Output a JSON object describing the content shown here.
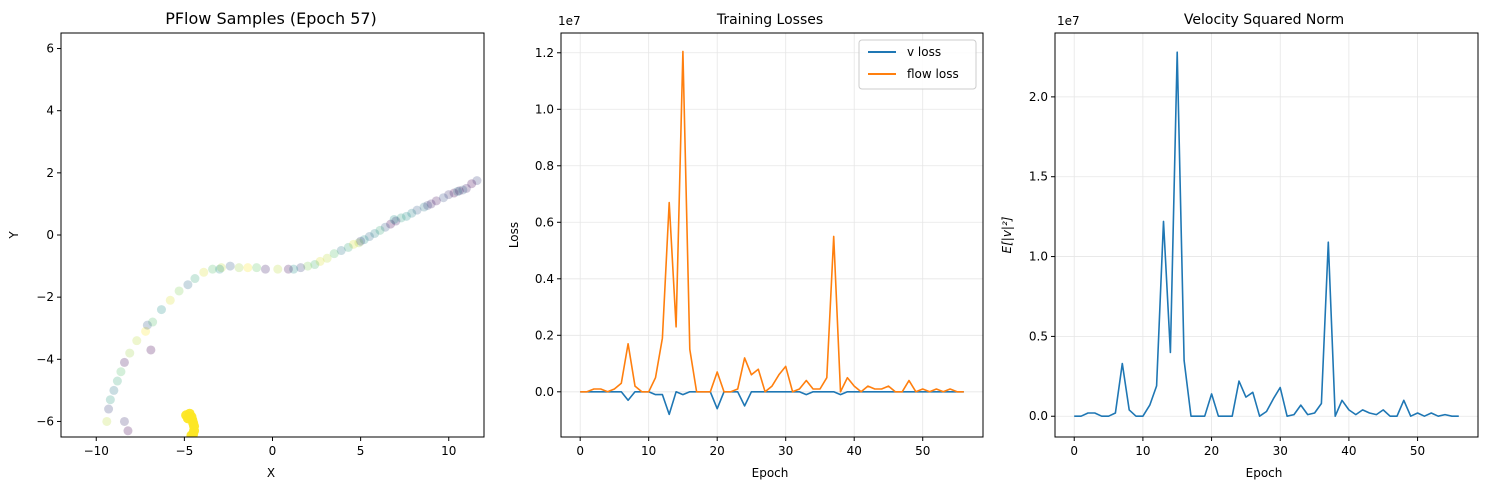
{
  "chart_data": [
    {
      "type": "scatter",
      "title": "PFlow Samples (Epoch 57)",
      "xlabel": "X",
      "ylabel": "Y",
      "xlim": [
        -12,
        12
      ],
      "ylim": [
        -6.5,
        6.5
      ],
      "xticks": [
        -10,
        -5,
        0,
        5,
        10
      ],
      "yticks": [
        -6,
        -4,
        -2,
        0,
        2,
        4,
        6
      ],
      "grid": false,
      "colormap": "viridis",
      "alpha": 0.25,
      "points": [
        [
          11.6,
          1.75,
          0.2
        ],
        [
          11.3,
          1.65,
          0.0
        ],
        [
          11.0,
          1.5,
          0.1
        ],
        [
          10.8,
          1.45,
          0.3
        ],
        [
          10.6,
          1.42,
          0.05
        ],
        [
          10.3,
          1.35,
          0.0
        ],
        [
          10.0,
          1.3,
          0.15
        ],
        [
          9.7,
          1.2,
          0.25
        ],
        [
          9.3,
          1.1,
          0.05
        ],
        [
          9.0,
          1.0,
          0.1
        ],
        [
          8.6,
          0.9,
          0.4
        ],
        [
          8.2,
          0.8,
          0.3
        ],
        [
          7.9,
          0.7,
          0.45
        ],
        [
          7.6,
          0.6,
          0.5
        ],
        [
          7.3,
          0.55,
          0.55
        ],
        [
          7.0,
          0.45,
          0.1
        ],
        [
          6.7,
          0.35,
          0.0
        ],
        [
          6.4,
          0.25,
          0.3
        ],
        [
          6.1,
          0.15,
          0.6
        ],
        [
          5.8,
          0.05,
          0.45
        ],
        [
          5.5,
          -0.05,
          0.35
        ],
        [
          5.2,
          -0.15,
          0.5
        ],
        [
          4.9,
          -0.25,
          0.85
        ],
        [
          4.6,
          -0.3,
          0.95
        ],
        [
          4.3,
          -0.4,
          0.6
        ],
        [
          3.9,
          -0.5,
          0.4
        ],
        [
          3.5,
          -0.6,
          0.7
        ],
        [
          3.1,
          -0.75,
          0.9
        ],
        [
          2.7,
          -0.85,
          0.95
        ],
        [
          2.4,
          -0.95,
          0.65
        ],
        [
          2.0,
          -1.0,
          0.8
        ],
        [
          1.6,
          -1.05,
          0.2
        ],
        [
          1.2,
          -1.1,
          0.5
        ],
        [
          0.9,
          -1.1,
          0.05
        ],
        [
          0.3,
          -1.1,
          0.9
        ],
        [
          -0.4,
          -1.1,
          0.1
        ],
        [
          -0.9,
          -1.05,
          0.75
        ],
        [
          -1.4,
          -1.05,
          1.0
        ],
        [
          -1.9,
          -1.05,
          0.85
        ],
        [
          -2.4,
          -1.0,
          0.3
        ],
        [
          -2.9,
          -1.05,
          0.9
        ],
        [
          -3.4,
          -1.1,
          0.7
        ],
        [
          -3.9,
          -1.2,
          0.95
        ],
        [
          -4.4,
          -1.4,
          0.6
        ],
        [
          -4.8,
          -1.6,
          0.35
        ],
        [
          -5.3,
          -1.8,
          0.8
        ],
        [
          -5.8,
          -2.1,
          0.95
        ],
        [
          -6.3,
          -2.4,
          0.5
        ],
        [
          -6.8,
          -2.8,
          0.7
        ],
        [
          -7.2,
          -3.1,
          1.0
        ],
        [
          -7.7,
          -3.4,
          0.9
        ],
        [
          -8.1,
          -3.8,
          0.85
        ],
        [
          -8.4,
          -4.1,
          0.05
        ],
        [
          -8.6,
          -4.4,
          0.7
        ],
        [
          -8.8,
          -4.7,
          0.6
        ],
        [
          -9.0,
          -5.0,
          0.4
        ],
        [
          -9.2,
          -5.3,
          0.55
        ],
        [
          -9.3,
          -5.6,
          0.2
        ],
        [
          -9.4,
          -6.0,
          0.9
        ],
        [
          -8.4,
          -6.0,
          0.15
        ],
        [
          -8.2,
          -6.3,
          0.0
        ],
        [
          -6.9,
          -3.7,
          0.0
        ],
        [
          -7.1,
          -2.9,
          0.3
        ],
        [
          -3.0,
          -1.1,
          0.5
        ],
        [
          5.0,
          -0.2,
          0.2
        ],
        [
          6.9,
          0.5,
          0.5
        ],
        [
          8.8,
          0.95,
          0.2
        ],
        [
          10.5,
          1.4,
          0.4
        ]
      ],
      "cluster_points": [
        [
          -4.9,
          -5.8
        ],
        [
          -4.7,
          -5.75
        ],
        [
          -4.6,
          -5.85
        ],
        [
          -4.55,
          -5.95
        ],
        [
          -4.5,
          -6.05
        ],
        [
          -4.45,
          -6.15
        ],
        [
          -4.45,
          -6.3
        ],
        [
          -4.5,
          -6.4
        ],
        [
          -4.6,
          -6.45
        ],
        [
          -4.8,
          -5.9
        ]
      ]
    },
    {
      "type": "line",
      "title": "Training Losses",
      "xlabel": "Epoch",
      "ylabel": "Loss",
      "scale_label": "1e7",
      "xlim": [
        -2.8,
        58.8
      ],
      "ylim": [
        -0.16,
        1.27
      ],
      "xticks": [
        0,
        10,
        20,
        30,
        40,
        50
      ],
      "yticks": [
        0.0,
        0.2,
        0.4,
        0.6,
        0.8,
        1.0,
        1.2
      ],
      "grid": true,
      "legend": "top-right",
      "series": [
        {
          "name": "v loss",
          "color": "#1f77b4",
          "values": [
            0,
            0,
            0,
            0,
            0,
            0,
            0,
            -0.03,
            0,
            0,
            0,
            -0.01,
            -0.01,
            -0.08,
            0,
            -0.01,
            0,
            0,
            0,
            0,
            -0.06,
            0,
            0,
            0,
            -0.05,
            0,
            0,
            0,
            0,
            0,
            0,
            0,
            0,
            -0.01,
            0,
            0,
            0,
            0,
            -0.01,
            0,
            0,
            0,
            0,
            0,
            0,
            0,
            0,
            0,
            0,
            0,
            0,
            0,
            0,
            0,
            0,
            0,
            0
          ]
        },
        {
          "name": "flow loss",
          "color": "#ff7f0e",
          "values": [
            0,
            0,
            0.01,
            0.01,
            0,
            0.01,
            0.03,
            0.17,
            0.02,
            0,
            0,
            0.05,
            0.19,
            0.67,
            0.23,
            1.205,
            0.15,
            0,
            0,
            0,
            0.07,
            0,
            0,
            0.01,
            0.12,
            0.06,
            0.08,
            0,
            0.02,
            0.06,
            0.09,
            0,
            0.01,
            0.04,
            0.01,
            0.01,
            0.05,
            0.55,
            0,
            0.05,
            0.02,
            0,
            0.02,
            0.01,
            0.01,
            0.02,
            0,
            0,
            0.04,
            0,
            0.01,
            0,
            0.01,
            0,
            0.01,
            0,
            0
          ]
        }
      ]
    },
    {
      "type": "line",
      "title": "Velocity Squared Norm",
      "xlabel": "Epoch",
      "ylabel": "E[|v|²]",
      "scale_label": "1e7",
      "xlim": [
        -2.8,
        58.8
      ],
      "ylim": [
        -0.13,
        2.4
      ],
      "xticks": [
        0,
        10,
        20,
        30,
        40,
        50
      ],
      "yticks": [
        0.0,
        0.5,
        1.0,
        1.5,
        2.0
      ],
      "grid": true,
      "series": [
        {
          "name": "",
          "color": "#1f77b4",
          "values": [
            0,
            0,
            0.02,
            0.02,
            0,
            0,
            0.02,
            0.33,
            0.04,
            0,
            0,
            0.07,
            0.19,
            1.22,
            0.4,
            2.28,
            0.35,
            0,
            0,
            0,
            0.14,
            0,
            0,
            0,
            0.22,
            0.12,
            0.15,
            0,
            0.03,
            0.11,
            0.18,
            0,
            0.01,
            0.07,
            0.01,
            0.02,
            0.08,
            1.09,
            0,
            0.1,
            0.04,
            0.01,
            0.04,
            0.02,
            0.01,
            0.04,
            0,
            0,
            0.1,
            0,
            0.02,
            0,
            0.02,
            0,
            0.01,
            0,
            0
          ]
        }
      ]
    }
  ]
}
